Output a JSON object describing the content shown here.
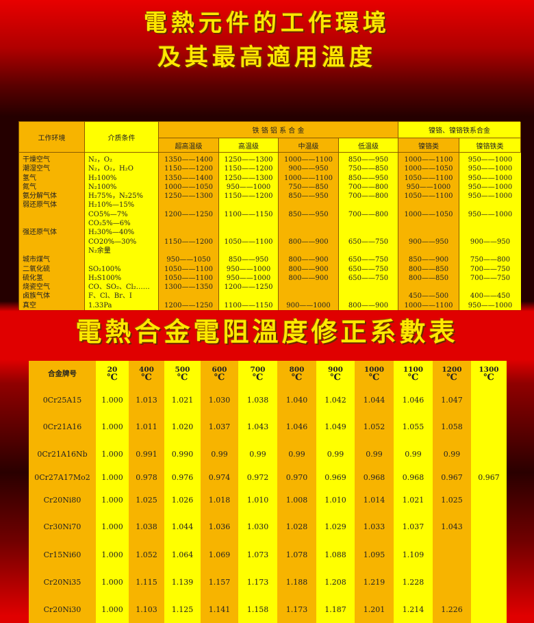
{
  "titles": {
    "line1": "電熱元件的工作環境",
    "line2": "及其最高適用溫度",
    "line3": "電熱合金電阻溫度修正系數表"
  },
  "colors": {
    "orange": "#f7b400",
    "yellow": "#ffff00",
    "title": "#ffe800",
    "background": "#e00000"
  },
  "env_table": {
    "headers": {
      "environment": "工作环境",
      "medium": "介质条件",
      "fecral_group": "铁 铬 铝 系 合 金",
      "nicr_group": "镍铬、镍铬铁系合金"
    },
    "subheaders": [
      "超高温级",
      "高温级",
      "中温级",
      "低温级",
      "镍铬类",
      "镍铬铁类"
    ],
    "environment": [
      "干燥空气",
      "潮湿空气",
      "氢气",
      "氮气",
      "氨分解气体",
      "弱还原气体",
      "",
      "",
      "强还原气体",
      "",
      "",
      "城市煤气",
      "二氧化硫",
      "硫化氢",
      "烧瓷空气",
      "卤族气体",
      "真空"
    ],
    "medium": [
      "N₂，O₂",
      "N₂，O₂，H₂O",
      "H₂100%",
      "N₂100%",
      "H₂75%，N₂25%",
      "H₂10%—15%",
      "CO5%—7%",
      "CO₂5%—6%",
      "H₂30%—40%",
      "CO20%—30%",
      "N₂余量",
      "",
      "SO₂100%",
      "H₂S100%",
      "CO、SO₂、Cl₂……",
      "F、Cl、Br、I",
      "1.33Pa"
    ],
    "columns": [
      [
        "1350——1400",
        "1150——1200",
        "1350——1400",
        "1000——1050",
        "1250——1300",
        "",
        "1200——1250",
        "",
        "",
        "1150——1200",
        "",
        "950——1050",
        "1050——1100",
        "1050——1100",
        "1300——1350",
        "",
        "1200——1250"
      ],
      [
        "1250——1300",
        "1150——1200",
        "1250——1300",
        "950——1000",
        "1150——1200",
        "",
        "1100——1150",
        "",
        "",
        "1050——1100",
        "",
        "850——950",
        "950——1000",
        "950——1000",
        "1200——1250",
        "",
        "1100——1150"
      ],
      [
        "1000——1100",
        "900——950",
        "1000——1100",
        "750——850",
        "850——950",
        "",
        "850——950",
        "",
        "",
        "800——900",
        "",
        "800——900",
        "800——900",
        "800——900",
        "",
        "",
        "900——1000"
      ],
      [
        "850——950",
        "750——850",
        "850——950",
        "700——800",
        "700——800",
        "",
        "700——800",
        "",
        "",
        "650——750",
        "",
        "650——750",
        "650——750",
        "650——750",
        "",
        "",
        "800——900"
      ],
      [
        "1000——1100",
        "1000——1050",
        "1050——1100",
        "950——1000",
        "1050——1100",
        "",
        "1000——1050",
        "",
        "",
        "900——950",
        "",
        "850——900",
        "800——850",
        "800——850",
        "",
        "450——500",
        "1000——1100"
      ],
      [
        "950——1000",
        "950——1000",
        "950——1000",
        "950——1000",
        "950——1000",
        "",
        "950——1000",
        "",
        "",
        "900——950",
        "",
        "750——800",
        "700——750",
        "700——750",
        "",
        "400——450",
        "950——1000"
      ]
    ]
  },
  "coef_table": {
    "name_header": "合金牌号",
    "unit": "℃",
    "temperatures": [
      "20",
      "400",
      "500",
      "600",
      "700",
      "800",
      "900",
      "1000",
      "1100",
      "1200",
      "1300"
    ],
    "alloys": [
      "0Cr25A15",
      "0Cr21A16",
      "0Cr21A16Nb",
      "0Cr27A17Mo2",
      "Cr20Ni80",
      "Cr30Ni70",
      "Cr15Ni60",
      "Cr20Ni35",
      "Cr20Ni30"
    ],
    "values": [
      [
        "1.000",
        "1.013",
        "1.021",
        "1.030",
        "1.038",
        "1.040",
        "1.042",
        "1.044",
        "1.046",
        "1.047",
        ""
      ],
      [
        "1.000",
        "1.011",
        "1.020",
        "1.037",
        "1.043",
        "1.046",
        "1.049",
        "1.052",
        "1.055",
        "1.058",
        ""
      ],
      [
        "1.000",
        "0.991",
        "0.990",
        "0.99",
        "0.99",
        "0.99",
        "0.99",
        "0.99",
        "0.99",
        "0.99",
        ""
      ],
      [
        "1.000",
        "0.978",
        "0.976",
        "0.974",
        "0.972",
        "0.970",
        "0.969",
        "0.968",
        "0.968",
        "0.967",
        "0.967"
      ],
      [
        "1.000",
        "1.025",
        "1.026",
        "1.018",
        "1.010",
        "1.008",
        "1.010",
        "1.014",
        "1.021",
        "1.025",
        ""
      ],
      [
        "1.000",
        "1.038",
        "1.044",
        "1.036",
        "1.030",
        "1.028",
        "1.029",
        "1.033",
        "1.037",
        "1.043",
        ""
      ],
      [
        "1.000",
        "1.052",
        "1.064",
        "1.069",
        "1.073",
        "1.078",
        "1.088",
        "1.095",
        "1.109",
        "",
        ""
      ],
      [
        "1.000",
        "1.115",
        "1.139",
        "1.157",
        "1.173",
        "1.188",
        "1.208",
        "1.219",
        "1.228",
        "",
        ""
      ],
      [
        "1.000",
        "1.103",
        "1.125",
        "1.141",
        "1.158",
        "1.173",
        "1.187",
        "1.201",
        "1.214",
        "1.226",
        ""
      ]
    ]
  }
}
